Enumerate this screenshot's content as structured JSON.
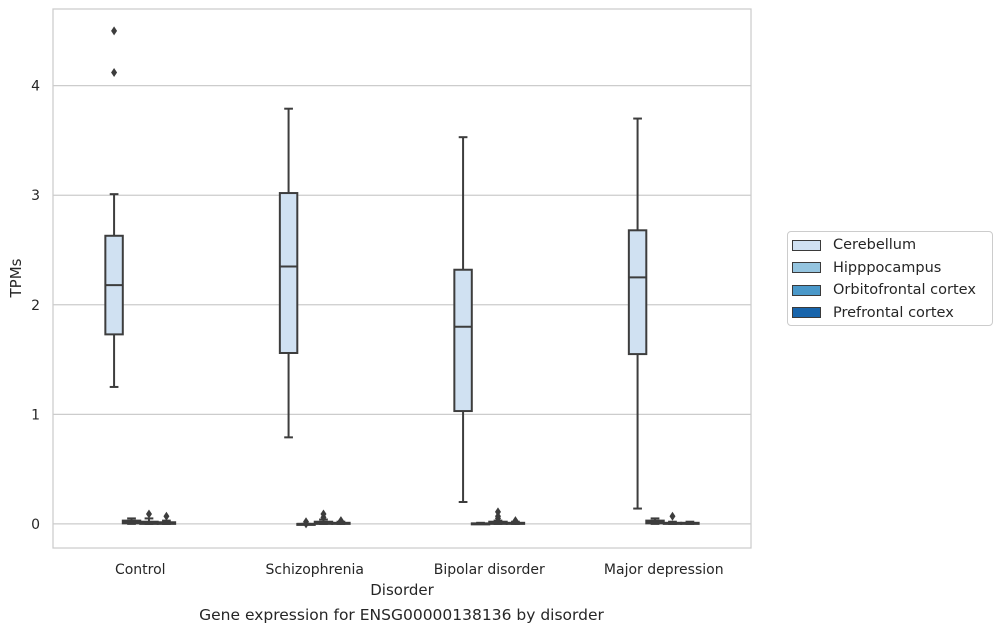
{
  "chart_data": {
    "type": "box",
    "title": "",
    "caption": "Gene expression for ENSG00000138136 by disorder",
    "xlabel": "Disorder",
    "ylabel": "TPMs",
    "ylim": [
      -0.22,
      4.7
    ],
    "yticks": [
      0,
      1,
      2,
      3,
      4
    ],
    "grid": "horizontal",
    "legend_position": "right",
    "categories": [
      "Control",
      "Schizophrenia",
      "Bipolar disorder",
      "Major depression"
    ],
    "series": [
      {
        "name": "Cerebellum",
        "color": "#d0e1f2",
        "boxes": [
          {
            "whisker_low": 1.25,
            "q1": 1.73,
            "median": 2.18,
            "q3": 2.63,
            "whisker_high": 3.01,
            "outliers": [
              4.12,
              4.5
            ]
          },
          {
            "whisker_low": 0.79,
            "q1": 1.56,
            "median": 2.35,
            "q3": 3.02,
            "whisker_high": 3.79,
            "outliers": []
          },
          {
            "whisker_low": 0.2,
            "q1": 1.03,
            "median": 1.8,
            "q3": 2.32,
            "whisker_high": 3.53,
            "outliers": []
          },
          {
            "whisker_low": 0.14,
            "q1": 1.55,
            "median": 2.25,
            "q3": 2.68,
            "whisker_high": 3.7,
            "outliers": []
          }
        ]
      },
      {
        "name": "Hipppocampus",
        "color": "#94c4df",
        "boxes": [
          {
            "whisker_low": 0.0,
            "q1": 0.005,
            "median": 0.015,
            "q3": 0.03,
            "whisker_high": 0.05,
            "outliers": []
          },
          {
            "whisker_low": 0.0,
            "q1": 0.0,
            "median": 0.0,
            "q3": 0.0,
            "whisker_high": 0.0,
            "outliers": [
              0.02,
              0.0
            ]
          },
          {
            "whisker_low": 0.0,
            "q1": 0.0,
            "median": 0.0,
            "q3": 0.005,
            "whisker_high": 0.01,
            "outliers": []
          },
          {
            "whisker_low": 0.0,
            "q1": 0.005,
            "median": 0.015,
            "q3": 0.03,
            "whisker_high": 0.05,
            "outliers": []
          }
        ]
      },
      {
        "name": "Orbitofrontal cortex",
        "color": "#4a98c9",
        "boxes": [
          {
            "whisker_low": 0.0,
            "q1": 0.0,
            "median": 0.01,
            "q3": 0.02,
            "whisker_high": 0.05,
            "outliers": [
              0.09
            ]
          },
          {
            "whisker_low": 0.0,
            "q1": 0.0,
            "median": 0.01,
            "q3": 0.02,
            "whisker_high": 0.04,
            "outliers": [
              0.09,
              0.06
            ]
          },
          {
            "whisker_low": 0.0,
            "q1": 0.0,
            "median": 0.01,
            "q3": 0.02,
            "whisker_high": 0.03,
            "outliers": [
              0.11,
              0.07,
              0.05
            ]
          },
          {
            "whisker_low": 0.0,
            "q1": 0.0,
            "median": 0.005,
            "q3": 0.01,
            "whisker_high": 0.02,
            "outliers": [
              0.07
            ]
          }
        ]
      },
      {
        "name": "Prefrontal cortex",
        "color": "#1764ab",
        "boxes": [
          {
            "whisker_low": 0.0,
            "q1": 0.0,
            "median": 0.005,
            "q3": 0.015,
            "whisker_high": 0.03,
            "outliers": [
              0.07
            ]
          },
          {
            "whisker_low": 0.0,
            "q1": 0.0,
            "median": 0.005,
            "q3": 0.01,
            "whisker_high": 0.02,
            "outliers": [
              0.03
            ]
          },
          {
            "whisker_low": 0.0,
            "q1": 0.0,
            "median": 0.005,
            "q3": 0.01,
            "whisker_high": 0.02,
            "outliers": [
              0.03
            ]
          },
          {
            "whisker_low": 0.0,
            "q1": 0.0,
            "median": 0.005,
            "q3": 0.01,
            "whisker_high": 0.02,
            "outliers": []
          }
        ]
      }
    ]
  }
}
